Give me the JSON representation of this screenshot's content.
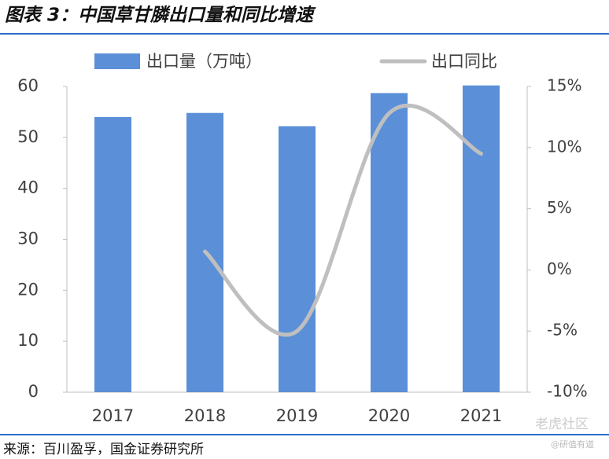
{
  "chart_data": {
    "type": "bar",
    "title": "图表 3：中国草甘膦出口量和同比增速",
    "categories": [
      "2017",
      "2018",
      "2019",
      "2020",
      "2021"
    ],
    "series": [
      {
        "name": "出口量（万吨）",
        "type": "bar",
        "color": "#5b8fd8",
        "values": [
          54,
          54.8,
          52.2,
          58.7,
          60.2
        ]
      },
      {
        "name": "出口同比",
        "type": "line",
        "axis": "y2",
        "color": "#bfbfbf",
        "values": [
          null,
          1.5,
          -5,
          12.8,
          9.5
        ]
      }
    ],
    "ylim": [
      0,
      60
    ],
    "yticks": [
      0,
      10,
      20,
      30,
      40,
      50,
      60
    ],
    "y2lim": [
      -10,
      15
    ],
    "y2ticks": [
      {
        "value": -10,
        "label": "-10%"
      },
      {
        "value": -5,
        "label": "-5%"
      },
      {
        "value": 0,
        "label": "0%"
      },
      {
        "value": 5,
        "label": "5%"
      },
      {
        "value": 10,
        "label": "10%"
      },
      {
        "value": 15,
        "label": "15%"
      }
    ],
    "grid": false,
    "source": "来源：百川盈孚，国金证券研究所",
    "watermarks": [
      "老虎社区",
      "@研值有道"
    ]
  }
}
